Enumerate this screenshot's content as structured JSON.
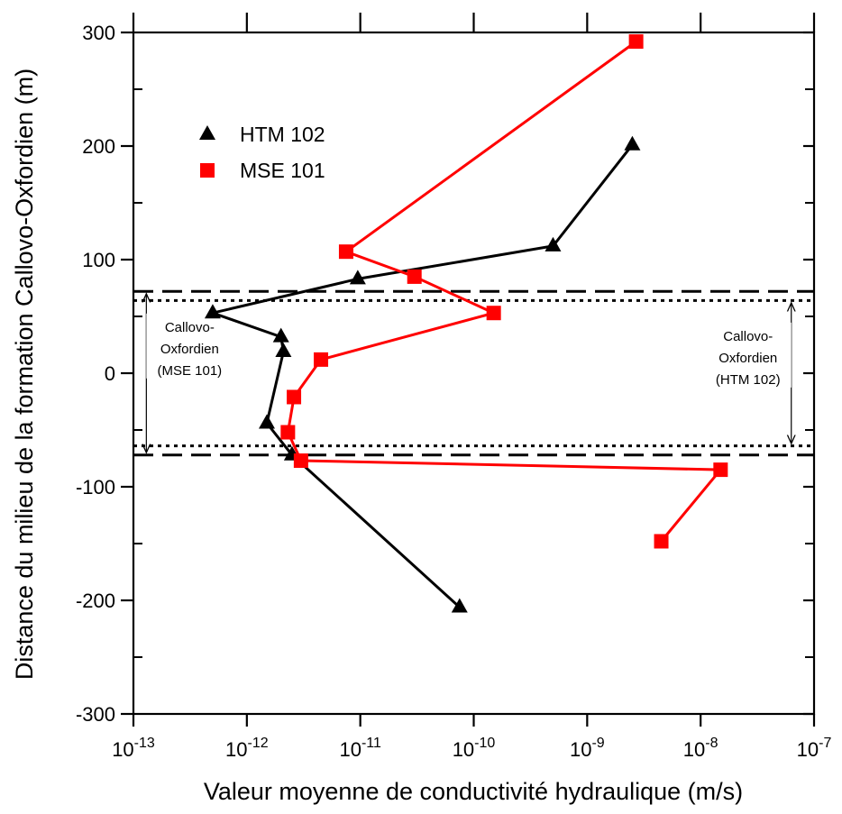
{
  "chart_data": {
    "type": "line",
    "xlabel": "Valeur moyenne de conductivité hydraulique (m/s)",
    "ylabel": "Distance du milieu de la formation Callovo-Oxfordien (m)",
    "x_scale": "log",
    "xlim": [
      1e-13,
      1e-07
    ],
    "ylim": [
      -300,
      300
    ],
    "x_ticks": [
      {
        "value": 1e-13,
        "base": "10",
        "exp": "-13"
      },
      {
        "value": 1e-12,
        "base": "10",
        "exp": "-12"
      },
      {
        "value": 1e-11,
        "base": "10",
        "exp": "-11"
      },
      {
        "value": 1e-10,
        "base": "10",
        "exp": "-10"
      },
      {
        "value": 1e-09,
        "base": "10",
        "exp": "-9"
      },
      {
        "value": 1e-08,
        "base": "10",
        "exp": "-8"
      },
      {
        "value": 1e-07,
        "base": "10",
        "exp": "-7"
      }
    ],
    "y_ticks": [
      300,
      200,
      100,
      0,
      -100,
      -200,
      -300
    ],
    "y_minor_step": 50,
    "legend_position": "upper-left",
    "series": [
      {
        "name": "HTM 102",
        "color": "#000000",
        "marker": "triangle",
        "points": [
          {
            "x": 2.5e-09,
            "y": 201
          },
          {
            "x": 5e-10,
            "y": 112
          },
          {
            "x": 9.5e-12,
            "y": 83
          },
          {
            "x": 5e-13,
            "y": 53
          },
          {
            "x": 2e-12,
            "y": 32
          },
          {
            "x": 2.1e-12,
            "y": 19
          },
          {
            "x": 1.5e-12,
            "y": -44
          },
          {
            "x": 2.5e-12,
            "y": -72
          },
          {
            "x": 7.5e-11,
            "y": -206
          }
        ]
      },
      {
        "name": "MSE 101",
        "color": "#ff0000",
        "marker": "square",
        "points": [
          {
            "x": 2.7e-09,
            "y": 292
          },
          {
            "x": 7.5e-12,
            "y": 107
          },
          {
            "x": 3e-11,
            "y": 85
          },
          {
            "x": 1.5e-10,
            "y": 53
          },
          {
            "x": 4.5e-12,
            "y": 12
          },
          {
            "x": 2.6e-12,
            "y": -21
          },
          {
            "x": 2.3e-12,
            "y": -52
          },
          {
            "x": 3e-12,
            "y": -77
          },
          {
            "x": 1.5e-08,
            "y": -85
          },
          {
            "x": 4.5e-09,
            "y": -148
          }
        ]
      }
    ],
    "reference_lines": [
      {
        "style": "dashed",
        "y": 72
      },
      {
        "style": "dashed",
        "y": -72
      },
      {
        "style": "dotted",
        "y": 64
      },
      {
        "style": "dotted",
        "y": -64
      }
    ],
    "annotations": [
      {
        "lines": [
          "Callovo-",
          "Oxfordien",
          "(MSE 101)"
        ],
        "arrow_x": 1.3e-13,
        "arrow_y": [
          70,
          -70
        ],
        "side": "left"
      },
      {
        "lines": [
          "Callovo-",
          "Oxfordien",
          "(HTM 102)"
        ],
        "arrow_x": 6.3e-08,
        "arrow_y": [
          62,
          -62
        ],
        "side": "right"
      }
    ]
  }
}
